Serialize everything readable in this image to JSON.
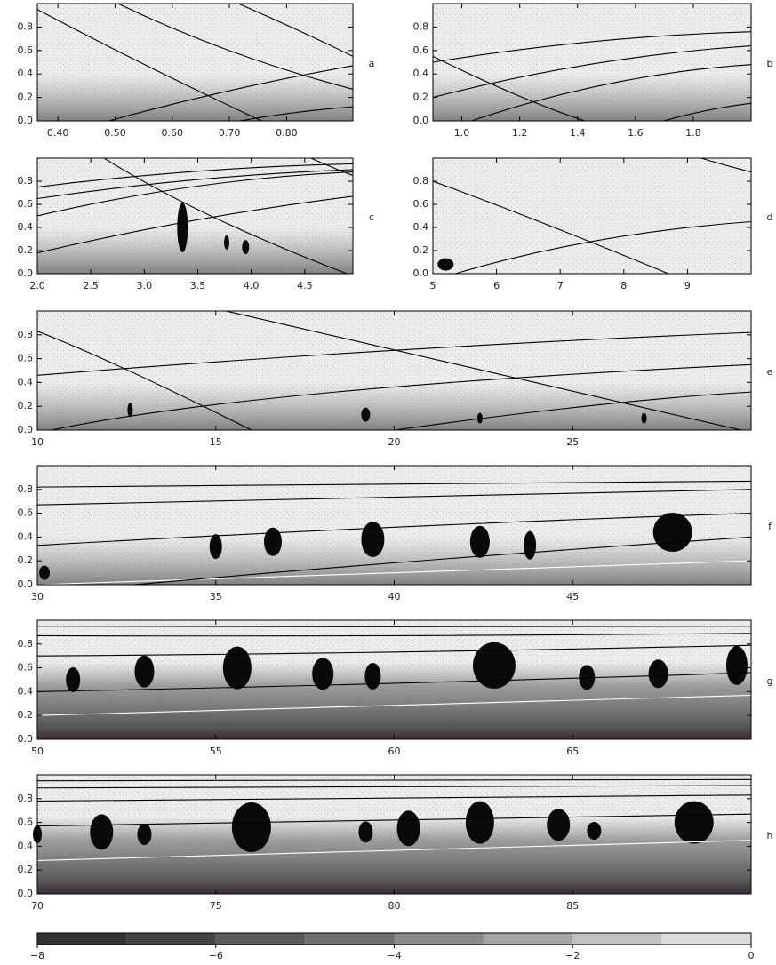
{
  "chart_data": [
    {
      "type": "density",
      "label": "a",
      "xlim": [
        0.364,
        0.916
      ],
      "ylim": [
        0,
        1
      ],
      "xticks": [
        {
          "value": 0.4,
          "label": "0.40"
        },
        {
          "value": 0.5,
          "label": "0.50"
        },
        {
          "value": 0.6,
          "label": "0.60"
        },
        {
          "value": 0.7,
          "label": "0.70"
        },
        {
          "value": 0.8,
          "label": "0.80"
        }
      ],
      "yticks": [
        {
          "value": 0,
          "label": "0.0"
        },
        0.2,
        0.4,
        0.6,
        0.8
      ]
    },
    {
      "type": "density",
      "label": "b",
      "xlim": [
        0.9,
        2.0
      ],
      "ylim": [
        0,
        1
      ],
      "xticks": [
        {
          "value": 1,
          "label": "1.0"
        },
        1.2,
        1.4,
        1.6,
        1.8
      ],
      "yticks": [
        {
          "value": 0,
          "label": "0.0"
        },
        0.2,
        0.4,
        0.6,
        0.8
      ]
    },
    {
      "type": "density",
      "label": "c",
      "xlim": [
        2.0,
        4.95
      ],
      "ylim": [
        0,
        1
      ],
      "xticks": [
        {
          "value": 2,
          "label": "2.0"
        },
        2.5,
        {
          "value": 3,
          "label": "3.0"
        },
        3.5,
        {
          "value": 4,
          "label": "4.0"
        },
        4.5
      ],
      "yticks": [
        {
          "value": 0,
          "label": "0.0"
        },
        0.2,
        0.4,
        0.6,
        0.8
      ]
    },
    {
      "type": "density",
      "label": "d",
      "xlim": [
        5,
        10
      ],
      "ylim": [
        0,
        1
      ],
      "xticks": [
        5,
        6,
        7,
        8,
        9
      ],
      "yticks": [
        {
          "value": 0,
          "label": "0.0"
        },
        0.2,
        0.4,
        0.6,
        0.8
      ]
    },
    {
      "type": "density",
      "label": "e",
      "xlim": [
        10,
        30
      ],
      "ylim": [
        0,
        1
      ],
      "xticks": [
        10,
        15,
        20,
        25
      ],
      "yticks": [
        {
          "value": 0,
          "label": "0.0"
        },
        0.2,
        0.4,
        0.6,
        0.8
      ]
    },
    {
      "type": "density",
      "label": "f",
      "xlim": [
        30,
        50
      ],
      "ylim": [
        0,
        1
      ],
      "xticks": [
        30,
        35,
        40,
        45
      ],
      "yticks": [
        {
          "value": 0,
          "label": "0.0"
        },
        0.2,
        0.4,
        0.6,
        0.8
      ]
    },
    {
      "type": "density",
      "label": "g",
      "xlim": [
        50,
        70
      ],
      "ylim": [
        0,
        1
      ],
      "xticks": [
        50,
        55,
        60,
        65
      ],
      "yticks": [
        {
          "value": 0,
          "label": "0.0"
        },
        0.2,
        0.4,
        0.6,
        0.8
      ]
    },
    {
      "type": "density",
      "label": "h",
      "xlim": [
        70,
        90
      ],
      "ylim": [
        0,
        1
      ],
      "xticks": [
        70,
        75,
        80,
        85
      ],
      "yticks": [
        {
          "value": 0,
          "label": "0.0"
        },
        0.2,
        0.4,
        0.6,
        0.8
      ]
    },
    {
      "type": "colorbar",
      "xlim": [
        -8,
        0
      ],
      "xticks": [
        {
          "value": -8,
          "label": "−8"
        },
        {
          "value": -6,
          "label": "−6"
        },
        {
          "value": -4,
          "label": "−4"
        },
        {
          "value": -2,
          "label": "−2"
        },
        0
      ]
    }
  ]
}
